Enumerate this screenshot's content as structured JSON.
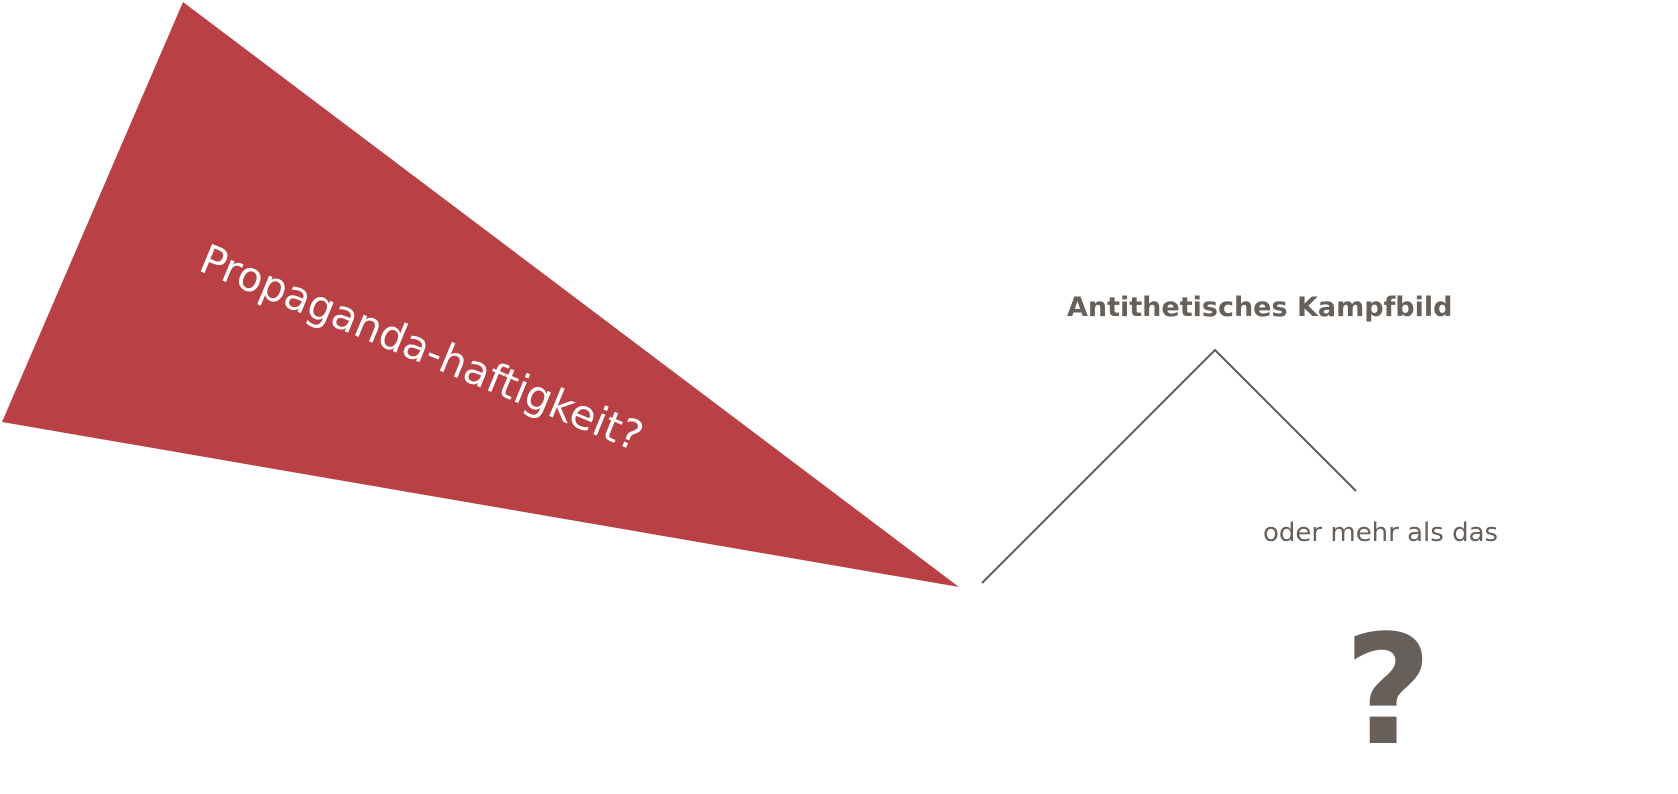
{
  "colors": {
    "wedge": "#b94044",
    "text_dark": "#675f59",
    "line": "#5a5a5a",
    "wedge_text": "#ffffff"
  },
  "wedge": {
    "label": "Propaganda-haftigkeit?"
  },
  "branch": {
    "title": "Antithetisches Kampfbild",
    "subtitle": "oder mehr als das"
  },
  "question_mark": {
    "symbol": "?"
  }
}
